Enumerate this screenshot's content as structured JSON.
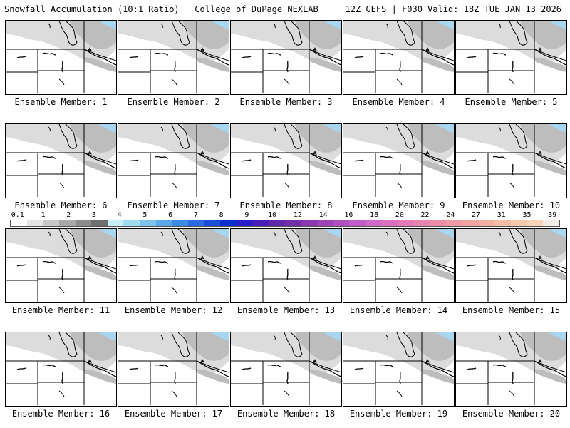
{
  "header": {
    "left": "Snowfall Accumulation (10:1 Ratio) | College of DuPage NEXLAB",
    "right": "12Z GEFS | F030 Valid: 18Z TUE JAN 13 2026"
  },
  "members": [
    {
      "label": "Ensemble Member: 1"
    },
    {
      "label": "Ensemble Member: 2"
    },
    {
      "label": "Ensemble Member: 3"
    },
    {
      "label": "Ensemble Member: 4"
    },
    {
      "label": "Ensemble Member: 5"
    },
    {
      "label": "Ensemble Member: 6"
    },
    {
      "label": "Ensemble Member: 7"
    },
    {
      "label": "Ensemble Member: 8"
    },
    {
      "label": "Ensemble Member: 9"
    },
    {
      "label": "Ensemble Member: 10"
    },
    {
      "label": "Ensemble Member: 11"
    },
    {
      "label": "Ensemble Member: 12"
    },
    {
      "label": "Ensemble Member: 13"
    },
    {
      "label": "Ensemble Member: 14"
    },
    {
      "label": "Ensemble Member: 15"
    },
    {
      "label": "Ensemble Member: 16"
    },
    {
      "label": "Ensemble Member: 17"
    },
    {
      "label": "Ensemble Member: 18"
    },
    {
      "label": "Ensemble Member: 19"
    },
    {
      "label": "Ensemble Member: 20"
    }
  ],
  "colorbar": {
    "labels": [
      "0.1",
      "1",
      "2",
      "3",
      "4",
      "5",
      "6",
      "7",
      "8",
      "9",
      "10",
      "12",
      "14",
      "16",
      "18",
      "20",
      "22",
      "24",
      "27",
      "31",
      "35",
      "39"
    ],
    "colors": [
      "#ffffff",
      "#e6e6e6",
      "#c8c8c8",
      "#a9a9a9",
      "#8c8c8c",
      "#6f6f6f",
      "#c8f0f8",
      "#a0dcf0",
      "#7cc4ec",
      "#5aa8e8",
      "#3c8ce4",
      "#2a6ce0",
      "#1a4ed8",
      "#0c30d0",
      "#2a1cc8",
      "#4a1cb8",
      "#5e28a8",
      "#722ea8",
      "#8a38b0",
      "#9c44b8",
      "#b050c0",
      "#c05cc8",
      "#d068c8",
      "#dc70c0",
      "#e47ab8",
      "#e884b0",
      "#ec8ea8",
      "#ee9aa4",
      "#f0a4a0",
      "#f2b0a0",
      "#f4bca4",
      "#f6c8ac",
      "#f8d4b8",
      "#f0ece6"
    ]
  }
}
